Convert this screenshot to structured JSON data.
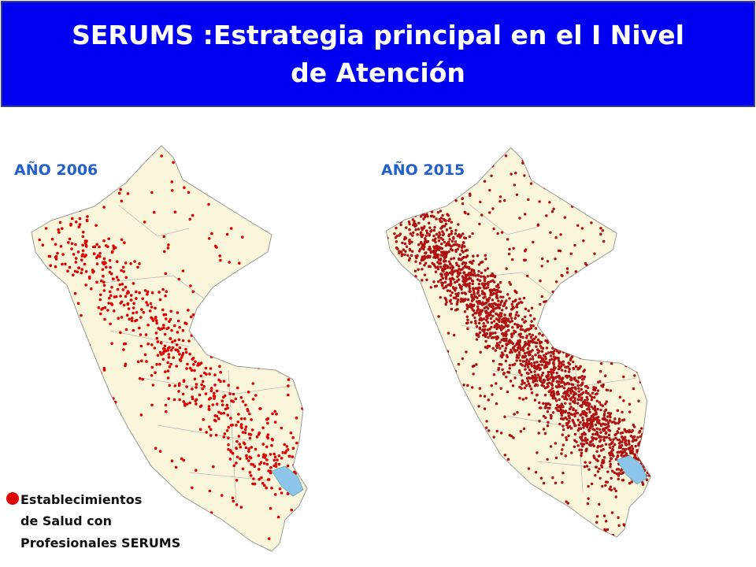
{
  "header": {
    "title": "SERUMS :Estrategia principal en el I Nivel de Atención"
  },
  "maps": [
    {
      "label": "AÑO 2006"
    },
    {
      "label": "AÑO 2015"
    }
  ],
  "legend": {
    "lines": [
      "Establecimientos",
      "de Salud con",
      "Profesionales SERUMS"
    ]
  }
}
